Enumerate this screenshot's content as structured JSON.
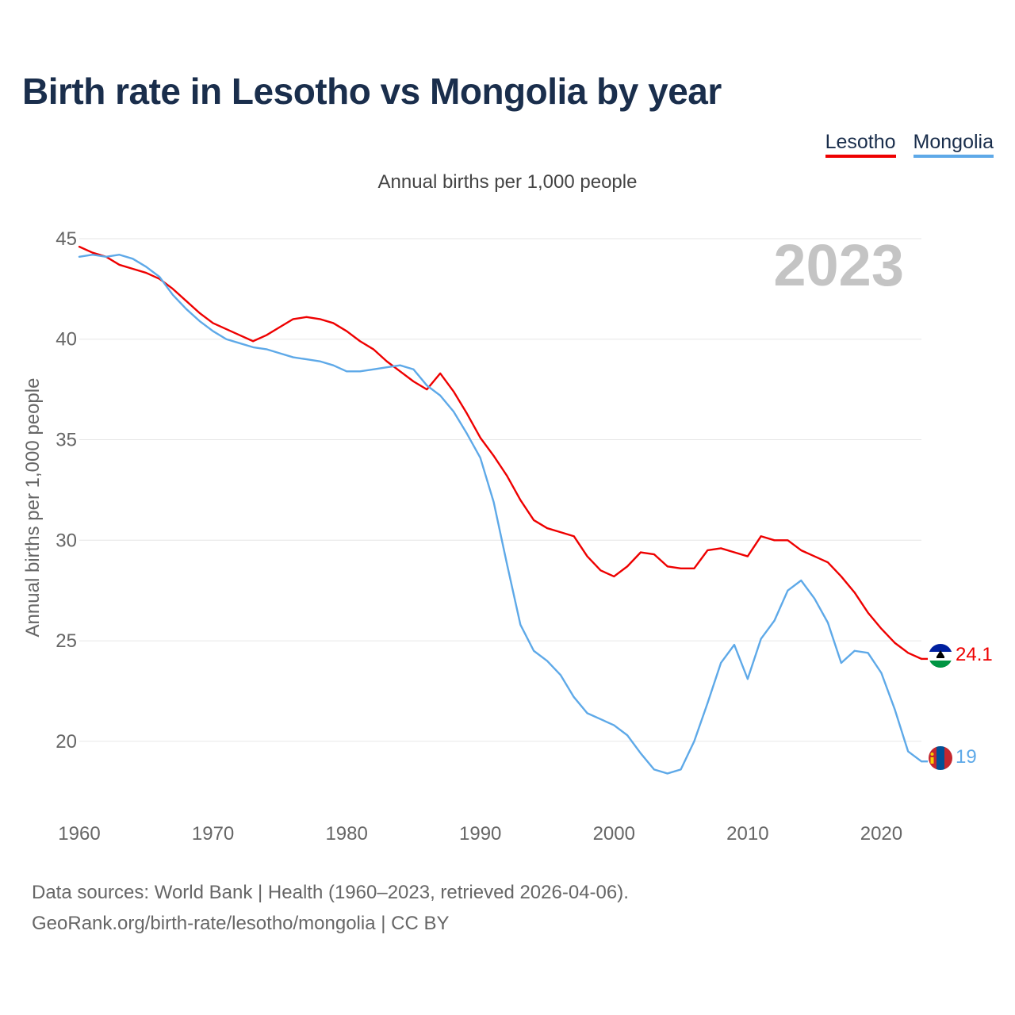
{
  "title": "Birth rate in Lesotho vs Mongolia by year",
  "subtitle": "Annual births per 1,000 people",
  "year_label": "2023",
  "footer": {
    "line1": "Data sources: World Bank | Health (1960–2023, retrieved 2026-04-06).",
    "line2": "GeoRank.org/birth-rate/lesotho/mongolia | CC BY"
  },
  "chart_data": {
    "type": "line",
    "title": "Birth rate in Lesotho vs Mongolia by year",
    "subtitle": "Annual births per 1,000 people",
    "xlabel": "",
    "ylabel": "Annual births per 1,000 people",
    "xlim": [
      1960,
      2023
    ],
    "ylim": [
      16.5,
      46
    ],
    "x_ticks": [
      1960,
      1970,
      1980,
      1990,
      2000,
      2010,
      2020
    ],
    "y_ticks": [
      20,
      25,
      30,
      35,
      40,
      45
    ],
    "grid": true,
    "legend_position": "top-right",
    "x": [
      1960,
      1961,
      1962,
      1963,
      1964,
      1965,
      1966,
      1967,
      1968,
      1969,
      1970,
      1971,
      1972,
      1973,
      1974,
      1975,
      1976,
      1977,
      1978,
      1979,
      1980,
      1981,
      1982,
      1983,
      1984,
      1985,
      1986,
      1987,
      1988,
      1989,
      1990,
      1991,
      1992,
      1993,
      1994,
      1995,
      1996,
      1997,
      1998,
      1999,
      2000,
      2001,
      2002,
      2003,
      2004,
      2005,
      2006,
      2007,
      2008,
      2009,
      2010,
      2011,
      2012,
      2013,
      2014,
      2015,
      2016,
      2017,
      2018,
      2019,
      2020,
      2021,
      2022,
      2023
    ],
    "series": [
      {
        "name": "Lesotho",
        "color": "#ee0000",
        "end_label": "24.1",
        "values": [
          44.6,
          44.3,
          44.1,
          43.7,
          43.5,
          43.3,
          43.0,
          42.5,
          41.9,
          41.3,
          40.8,
          40.5,
          40.2,
          39.9,
          40.2,
          40.6,
          41.0,
          41.1,
          41.0,
          40.8,
          40.4,
          39.9,
          39.5,
          38.9,
          38.4,
          37.9,
          37.5,
          38.3,
          37.4,
          36.3,
          35.1,
          34.2,
          33.2,
          32.0,
          31.0,
          30.6,
          30.4,
          30.2,
          29.2,
          28.5,
          28.2,
          28.7,
          29.4,
          29.3,
          28.7,
          28.6,
          28.6,
          29.5,
          29.6,
          29.4,
          29.2,
          30.2,
          30.0,
          30.0,
          29.5,
          29.2,
          28.9,
          28.2,
          27.4,
          26.4,
          25.6,
          24.9,
          24.4,
          24.1
        ]
      },
      {
        "name": "Mongolia",
        "color": "#5ea9e8",
        "end_label": "19",
        "values": [
          44.1,
          44.2,
          44.1,
          44.2,
          44.0,
          43.6,
          43.1,
          42.2,
          41.5,
          40.9,
          40.4,
          40.0,
          39.8,
          39.6,
          39.5,
          39.3,
          39.1,
          39.0,
          38.9,
          38.7,
          38.4,
          38.4,
          38.5,
          38.6,
          38.7,
          38.5,
          37.7,
          37.2,
          36.4,
          35.3,
          34.1,
          31.9,
          28.8,
          25.8,
          24.5,
          24.0,
          23.3,
          22.2,
          21.4,
          21.1,
          20.8,
          20.3,
          19.4,
          18.6,
          18.4,
          18.6,
          20.0,
          21.9,
          23.9,
          24.8,
          23.1,
          25.1,
          26.0,
          27.5,
          28.0,
          27.1,
          25.9,
          23.9,
          24.5,
          24.4,
          23.4,
          21.6,
          19.5,
          19.0
        ]
      }
    ]
  }
}
